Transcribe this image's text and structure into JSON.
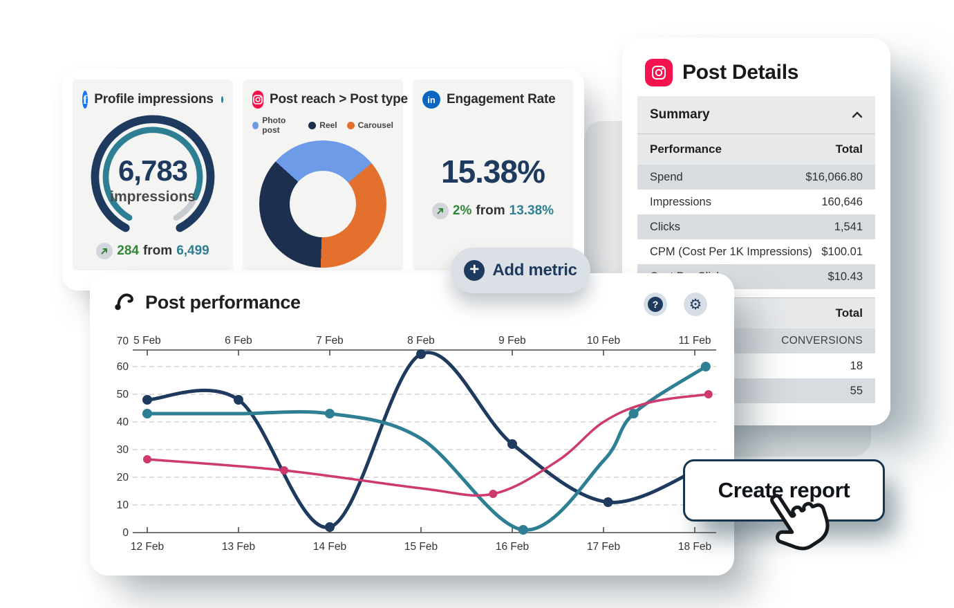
{
  "colors": {
    "navy": "#1e3a5f",
    "teal": "#2e7f93",
    "pink": "#ce3a6d",
    "orange": "#e4702d",
    "light_blue": "#6e9be8",
    "green": "#33853c",
    "facebook": "#1877f2",
    "linkedin": "#0a66c2",
    "instagram": "#f4134e",
    "tile_bg": "#f4f4f2"
  },
  "metrics_card": {
    "profile_impressions": {
      "title": "Profile impressions",
      "value": "6,783",
      "unit": "impressions",
      "change": {
        "delta": "284",
        "from_label": "from",
        "previous": "6,499"
      }
    },
    "post_reach": {
      "title": "Post reach > Post type",
      "legend": [
        {
          "label": "Photo post",
          "color": "#6e9be8"
        },
        {
          "label": "Reel",
          "color": "#1d2f4e"
        },
        {
          "label": "Carousel",
          "color": "#e4702d"
        }
      ],
      "chart_data": {
        "type": "pie",
        "start_deg": -48,
        "slices": [
          {
            "label": "Photo post",
            "color": "#6e9be8",
            "deg": 98
          },
          {
            "label": "Carousel",
            "color": "#e4702d",
            "deg": 132
          },
          {
            "label": "Reel",
            "color": "#1d2f4e",
            "deg": 130
          }
        ]
      }
    },
    "engagement_rate": {
      "title": "Engagement Rate",
      "value": "15.38%",
      "change": {
        "delta": "2%",
        "from_label": "from",
        "previous": "13.38%"
      }
    }
  },
  "add_metric": {
    "label": "Add metric"
  },
  "post_details": {
    "title": "Post Details",
    "summary_label": "Summary",
    "table1": {
      "col_label": "Performance",
      "col_value": "Total",
      "rows": [
        {
          "label": "Spend",
          "value": "$16,066.80"
        },
        {
          "label": "Impressions",
          "value": "160,646"
        },
        {
          "label": "Clicks",
          "value": "1,541"
        },
        {
          "label": "CPM (Cost Per 1K Impressions)",
          "value": "$100.01"
        },
        {
          "label": "Cost Per Click",
          "value": "$10.43"
        }
      ]
    },
    "table2": {
      "col_label": "",
      "col_value": "Total",
      "rows": [
        {
          "label": "",
          "value": "CONVERSIONS"
        },
        {
          "label": "",
          "value": "18"
        },
        {
          "label": "",
          "value": "55"
        }
      ]
    }
  },
  "post_performance": {
    "title": "Post performance",
    "chart_data": {
      "type": "line",
      "title": "Post performance",
      "x_top_labels": [
        "5 Feb",
        "6 Feb",
        "7 Feb",
        "8 Feb",
        "9 Feb",
        "10 Feb",
        "11 Feb"
      ],
      "x_bottom_labels": [
        "12 Feb",
        "13 Feb",
        "14 Feb",
        "15 Feb",
        "16 Feb",
        "17 Feb",
        "18 Feb"
      ],
      "ylim": [
        0,
        70
      ],
      "yticks": [
        0,
        10,
        20,
        30,
        40,
        50,
        60,
        70
      ],
      "gridline_values": [
        10,
        20,
        30,
        40,
        50,
        60
      ],
      "grid": "dashed-horizontal",
      "legend_position": "none",
      "series": [
        {
          "name": "series-navy",
          "color": "#1e3a5f",
          "width": 5,
          "dot_r": 7,
          "points": [
            {
              "x": 0,
              "y": 48,
              "dot": true
            },
            {
              "x": 1,
              "y": 48,
              "dot": true
            },
            {
              "x": 2,
              "y": 2,
              "dot": true
            },
            {
              "x": 3,
              "y": 64.5,
              "dot": true
            },
            {
              "x": 4,
              "y": 32,
              "dot": true
            },
            {
              "x": 5.05,
              "y": 11,
              "dot": true
            },
            {
              "x": 6.1,
              "y": 24,
              "dot": false
            }
          ]
        },
        {
          "name": "series-teal",
          "color": "#2e7f93",
          "width": 5,
          "dot_r": 7,
          "points": [
            {
              "x": 0,
              "y": 43,
              "dot": true
            },
            {
              "x": 1,
              "y": 43,
              "dot": false
            },
            {
              "x": 2,
              "y": 43,
              "dot": true
            },
            {
              "x": 3,
              "y": 34,
              "dot": false
            },
            {
              "x": 4.12,
              "y": 1,
              "dot": true
            },
            {
              "x": 5,
              "y": 26,
              "dot": false
            },
            {
              "x": 5.33,
              "y": 43,
              "dot": true
            },
            {
              "x": 6.12,
              "y": 60,
              "dot": true
            }
          ]
        },
        {
          "name": "series-pink",
          "color": "#ce3a6d",
          "width": 3.5,
          "dot_r": 6,
          "points": [
            {
              "x": 0,
              "y": 26.5,
              "dot": true
            },
            {
              "x": 1.5,
              "y": 22.5,
              "dot": true
            },
            {
              "x": 3,
              "y": 16,
              "dot": false
            },
            {
              "x": 3.79,
              "y": 14,
              "dot": true
            },
            {
              "x": 4.5,
              "y": 26,
              "dot": false
            },
            {
              "x": 5,
              "y": 40,
              "dot": false
            },
            {
              "x": 5.5,
              "y": 47,
              "dot": false
            },
            {
              "x": 6.15,
              "y": 50,
              "dot": true
            }
          ]
        }
      ]
    }
  },
  "create_report": {
    "label": "Create report"
  }
}
